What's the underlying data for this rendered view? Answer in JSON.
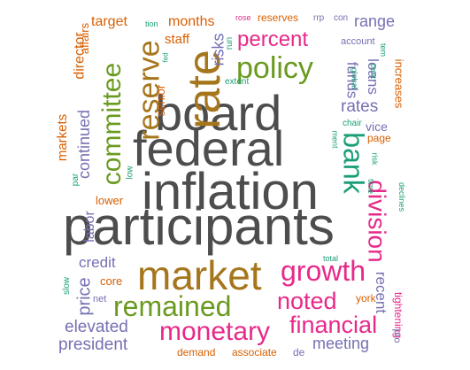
{
  "words": [
    {
      "text": "inflation",
      "color": "gray"
    },
    {
      "text": "participants",
      "color": "gray"
    },
    {
      "text": "federal",
      "color": "gray"
    },
    {
      "text": "board",
      "color": "gray"
    },
    {
      "text": "market",
      "color": "brown"
    },
    {
      "text": "rate",
      "color": "brown"
    },
    {
      "text": "reserve",
      "color": "gold"
    },
    {
      "text": "policy",
      "color": "green"
    },
    {
      "text": "committee",
      "color": "green"
    },
    {
      "text": "percent",
      "color": "pink"
    },
    {
      "text": "bank",
      "color": "teal"
    },
    {
      "text": "division",
      "color": "pink"
    },
    {
      "text": "growth",
      "color": "pink"
    },
    {
      "text": "remained",
      "color": "green"
    },
    {
      "text": "monetary",
      "color": "pink"
    },
    {
      "text": "financial",
      "color": "pink"
    },
    {
      "text": "noted",
      "color": "pink"
    },
    {
      "text": "meeting",
      "color": "purple"
    },
    {
      "text": "elevated",
      "color": "purple"
    },
    {
      "text": "president",
      "color": "purple"
    },
    {
      "text": "credit",
      "color": "purple"
    },
    {
      "text": "price",
      "color": "purple"
    },
    {
      "text": "labor",
      "color": "purple"
    },
    {
      "text": "continued",
      "color": "purple"
    },
    {
      "text": "markets",
      "color": "orange"
    },
    {
      "text": "director",
      "color": "orange"
    },
    {
      "text": "affairs",
      "color": "orange"
    },
    {
      "text": "target",
      "color": "orange"
    },
    {
      "text": "months",
      "color": "orange"
    },
    {
      "text": "staff",
      "color": "orange"
    },
    {
      "text": "risks",
      "color": "purple"
    },
    {
      "text": "senior",
      "color": "orange"
    },
    {
      "text": "range",
      "color": "purple"
    },
    {
      "text": "loans",
      "color": "purple"
    },
    {
      "text": "funds",
      "color": "purple"
    },
    {
      "text": "rates",
      "color": "purple"
    },
    {
      "text": "increases",
      "color": "orange"
    },
    {
      "text": "vice",
      "color": "purple"
    },
    {
      "text": "page",
      "color": "orange"
    },
    {
      "text": "recent",
      "color": "purple"
    },
    {
      "text": "tightening",
      "color": "pink"
    },
    {
      "text": "pro",
      "color": "purple"
    },
    {
      "text": "york",
      "color": "orange"
    },
    {
      "text": "core",
      "color": "orange"
    },
    {
      "text": "net",
      "color": "purple"
    },
    {
      "text": "slow",
      "color": "teal"
    },
    {
      "text": "lower",
      "color": "orange"
    },
    {
      "text": "par",
      "color": "teal"
    },
    {
      "text": "low",
      "color": "teal"
    },
    {
      "text": "demand",
      "color": "orange"
    },
    {
      "text": "associate",
      "color": "orange"
    },
    {
      "text": "de",
      "color": "purple"
    },
    {
      "text": "total",
      "color": "teal"
    },
    {
      "text": "reserves",
      "color": "orange"
    },
    {
      "text": "rose",
      "color": "pink"
    },
    {
      "text": "rrp",
      "color": "purple"
    },
    {
      "text": "con",
      "color": "purple"
    },
    {
      "text": "tion",
      "color": "teal"
    },
    {
      "text": "account",
      "color": "purple"
    },
    {
      "text": "run",
      "color": "teal"
    },
    {
      "text": "fed",
      "color": "teal"
    },
    {
      "text": "extent",
      "color": "teal"
    },
    {
      "text": "chair",
      "color": "teal"
    },
    {
      "text": "global",
      "color": "teal"
    },
    {
      "text": "past",
      "color": "teal"
    },
    {
      "text": "tem",
      "color": "teal"
    },
    {
      "text": "ment",
      "color": "teal"
    },
    {
      "text": "time",
      "color": "teal"
    },
    {
      "text": "risk",
      "color": "teal"
    },
    {
      "text": "declines",
      "color": "teal"
    }
  ]
}
